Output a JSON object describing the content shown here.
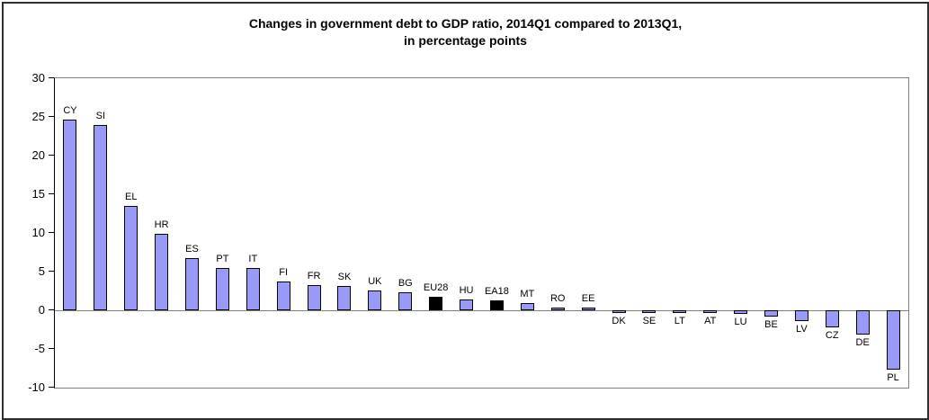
{
  "chart_data": {
    "type": "bar",
    "title_line1": "Changes in government debt to GDP ratio, 2014Q1 compared to 2013Q1,",
    "title_line2": "in percentage points",
    "xlabel": "",
    "ylabel": "",
    "categories": [
      "CY",
      "SI",
      "EL",
      "HR",
      "ES",
      "PT",
      "IT",
      "FI",
      "FR",
      "SK",
      "UK",
      "BG",
      "EU28",
      "HU",
      "EA18",
      "MT",
      "RO",
      "EE",
      "DK",
      "SE",
      "LT",
      "AT",
      "LU",
      "BE",
      "LV",
      "CZ",
      "DE",
      "PL"
    ],
    "values": [
      24.7,
      23.9,
      13.5,
      9.9,
      6.8,
      5.5,
      5.5,
      3.7,
      3.3,
      3.1,
      2.6,
      2.3,
      1.8,
      1.4,
      1.3,
      0.9,
      0.4,
      0.3,
      -0.2,
      -0.2,
      -0.4,
      -0.4,
      -0.5,
      -0.8,
      -1.4,
      -2.2,
      -3.1,
      -7.7
    ],
    "highlighted_categories": [
      "EU28",
      "EA18"
    ],
    "ylim": [
      -10,
      30
    ],
    "ytick_step": 5,
    "ytick_labels": [
      "30",
      "25",
      "20",
      "15",
      "10",
      "5",
      "0",
      "-5",
      "-10"
    ],
    "grid": false,
    "legend_position": "none",
    "colors": {
      "bar_fill": "#9999F8",
      "bar_border": "#000000",
      "highlight_fill": "#000000",
      "plot_frame": "#808080",
      "axis_line": "#000000",
      "zero_line": "#808080",
      "outer_border": "#2F2F2F",
      "title_text": "#000000"
    }
  }
}
